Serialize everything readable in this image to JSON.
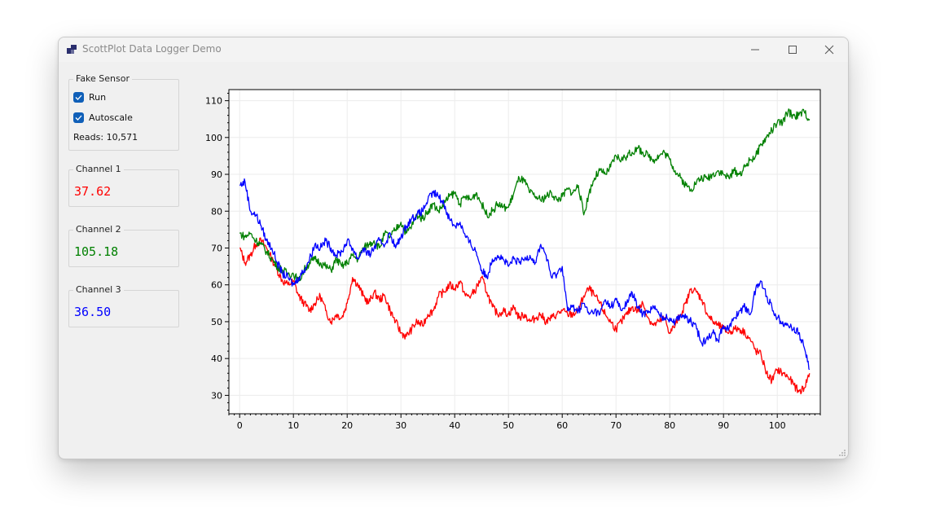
{
  "window": {
    "title": "ScottPlot Data Logger Demo"
  },
  "sensor": {
    "title": "Fake Sensor",
    "run_label": "Run",
    "autoscale_label": "Autoscale",
    "reads": "Reads: 10,571"
  },
  "channels": [
    {
      "label": "Channel 1",
      "value": "37.62",
      "color": "#ff0000"
    },
    {
      "label": "Channel 2",
      "value": "105.18",
      "color": "#008000"
    },
    {
      "label": "Channel 3",
      "value": "36.50",
      "color": "#0000ff"
    }
  ],
  "chart_data": {
    "type": "line",
    "title": "",
    "xlabel": "",
    "ylabel": "",
    "xlim": [
      -2,
      108
    ],
    "ylim": [
      25,
      113
    ],
    "xticks": [
      0,
      10,
      20,
      30,
      40,
      50,
      60,
      70,
      80,
      90,
      100
    ],
    "yticks": [
      30,
      40,
      50,
      60,
      70,
      80,
      90,
      100,
      110
    ],
    "grid": true,
    "legend": "none",
    "series": [
      {
        "color": "#ff0000",
        "x": [
          0,
          1,
          2,
          3,
          4,
          5,
          6,
          7,
          8,
          9,
          10,
          11,
          12,
          13,
          14,
          15,
          16,
          17,
          18,
          19,
          20,
          21,
          22,
          23,
          24,
          25,
          26,
          27,
          28,
          29,
          30,
          31,
          32,
          33,
          34,
          35,
          36,
          37,
          38,
          39,
          40,
          41,
          42,
          43,
          44,
          45,
          46,
          47,
          48,
          49,
          50,
          51,
          52,
          53,
          54,
          55,
          56,
          57,
          58,
          59,
          60,
          61,
          62,
          63,
          64,
          65,
          66,
          67,
          68,
          69,
          70,
          71,
          72,
          73,
          74,
          75,
          76,
          77,
          78,
          79,
          80,
          81,
          82,
          83,
          84,
          85,
          86,
          87,
          88,
          89,
          90,
          91,
          92,
          93,
          94,
          95,
          96,
          97,
          98,
          99,
          100,
          101,
          102,
          103,
          104,
          105,
          106
        ],
        "y": [
          70,
          66,
          68,
          71,
          72,
          70,
          67,
          64,
          61,
          60,
          61,
          57,
          55,
          53,
          55,
          57,
          53,
          50,
          52,
          51,
          55,
          62,
          60,
          57,
          55,
          58,
          56,
          57,
          53,
          50,
          47,
          46,
          48,
          50,
          49,
          52,
          53,
          57,
          58,
          60,
          59,
          61,
          57,
          57,
          59,
          62,
          58,
          54,
          52,
          53,
          52,
          54,
          51,
          52,
          50,
          51,
          52,
          50,
          51,
          52,
          53,
          52,
          52,
          53,
          57,
          59,
          57,
          55,
          52,
          50,
          48,
          50,
          52,
          54,
          53,
          55,
          51,
          49,
          50,
          51,
          47,
          49,
          52,
          55,
          59,
          58,
          56,
          52,
          50,
          49,
          48,
          47,
          48,
          48,
          47,
          45,
          42,
          41,
          36,
          34,
          37,
          36,
          35,
          33,
          31,
          32,
          36
        ]
      },
      {
        "color": "#008000",
        "x": [
          0,
          1,
          2,
          3,
          4,
          5,
          6,
          7,
          8,
          9,
          10,
          11,
          12,
          13,
          14,
          15,
          16,
          17,
          18,
          19,
          20,
          21,
          22,
          23,
          24,
          25,
          26,
          27,
          28,
          29,
          30,
          31,
          32,
          33,
          34,
          35,
          36,
          37,
          38,
          39,
          40,
          41,
          42,
          43,
          44,
          45,
          46,
          47,
          48,
          49,
          50,
          51,
          52,
          53,
          54,
          55,
          56,
          57,
          58,
          59,
          60,
          61,
          62,
          63,
          64,
          65,
          66,
          67,
          68,
          69,
          70,
          71,
          72,
          73,
          74,
          75,
          76,
          77,
          78,
          79,
          80,
          81,
          82,
          83,
          84,
          85,
          86,
          87,
          88,
          89,
          90,
          91,
          92,
          93,
          94,
          95,
          96,
          97,
          98,
          99,
          100,
          101,
          102,
          103,
          104,
          105,
          106
        ],
        "y": [
          74,
          73,
          74,
          72,
          71,
          69,
          67,
          65,
          64,
          63,
          63,
          61,
          64,
          66,
          67,
          66,
          65,
          64,
          67,
          65,
          66,
          68,
          67,
          70,
          71,
          72,
          70,
          74,
          73,
          75,
          77,
          74,
          76,
          79,
          78,
          80,
          82,
          80,
          82,
          84,
          85,
          82,
          84,
          83,
          85,
          82,
          79,
          80,
          82,
          81,
          81,
          85,
          89,
          88,
          85,
          84,
          83,
          84,
          85,
          83,
          84,
          86,
          85,
          87,
          79,
          85,
          89,
          91,
          90,
          92,
          95,
          94,
          95,
          96,
          97,
          96,
          95,
          94,
          95,
          96,
          94,
          91,
          89,
          87,
          86,
          88,
          89,
          89,
          90,
          91,
          90,
          89,
          91,
          90,
          92,
          94,
          95,
          98,
          100,
          102,
          104,
          104,
          107,
          106,
          106,
          107,
          105
        ]
      },
      {
        "color": "#0000ff",
        "x": [
          0,
          1,
          2,
          3,
          4,
          5,
          6,
          7,
          8,
          9,
          10,
          11,
          12,
          13,
          14,
          15,
          16,
          17,
          18,
          19,
          20,
          21,
          22,
          23,
          24,
          25,
          26,
          27,
          28,
          29,
          30,
          31,
          32,
          33,
          34,
          35,
          36,
          37,
          38,
          39,
          40,
          41,
          42,
          43,
          44,
          45,
          46,
          47,
          48,
          49,
          50,
          51,
          52,
          53,
          54,
          55,
          56,
          57,
          58,
          59,
          60,
          61,
          62,
          63,
          64,
          65,
          66,
          67,
          68,
          69,
          70,
          71,
          72,
          73,
          74,
          75,
          76,
          77,
          78,
          79,
          80,
          81,
          82,
          83,
          84,
          85,
          86,
          87,
          88,
          89,
          90,
          91,
          92,
          93,
          94,
          95,
          96,
          97,
          98,
          99,
          100,
          101,
          102,
          103,
          104,
          105,
          106
        ],
        "y": [
          87,
          88,
          80,
          79,
          76,
          72,
          70,
          66,
          63,
          62,
          60,
          62,
          64,
          67,
          71,
          70,
          72,
          70,
          68,
          69,
          72,
          70,
          67,
          70,
          68,
          70,
          72,
          71,
          74,
          70,
          73,
          76,
          78,
          79,
          80,
          83,
          85,
          84,
          82,
          78,
          76,
          77,
          73,
          71,
          69,
          64,
          62,
          67,
          68,
          67,
          65,
          67,
          66,
          67,
          68,
          66,
          71,
          68,
          62,
          63,
          65,
          53,
          54,
          53,
          55,
          52,
          53,
          52,
          56,
          54,
          56,
          53,
          55,
          58,
          54,
          52,
          53,
          54,
          52,
          51,
          51,
          50,
          52,
          51,
          50,
          48,
          44,
          46,
          47,
          45,
          49,
          48,
          51,
          53,
          54,
          52,
          59,
          61,
          57,
          54,
          51,
          50,
          49,
          48,
          47,
          43,
          37
        ]
      }
    ]
  }
}
